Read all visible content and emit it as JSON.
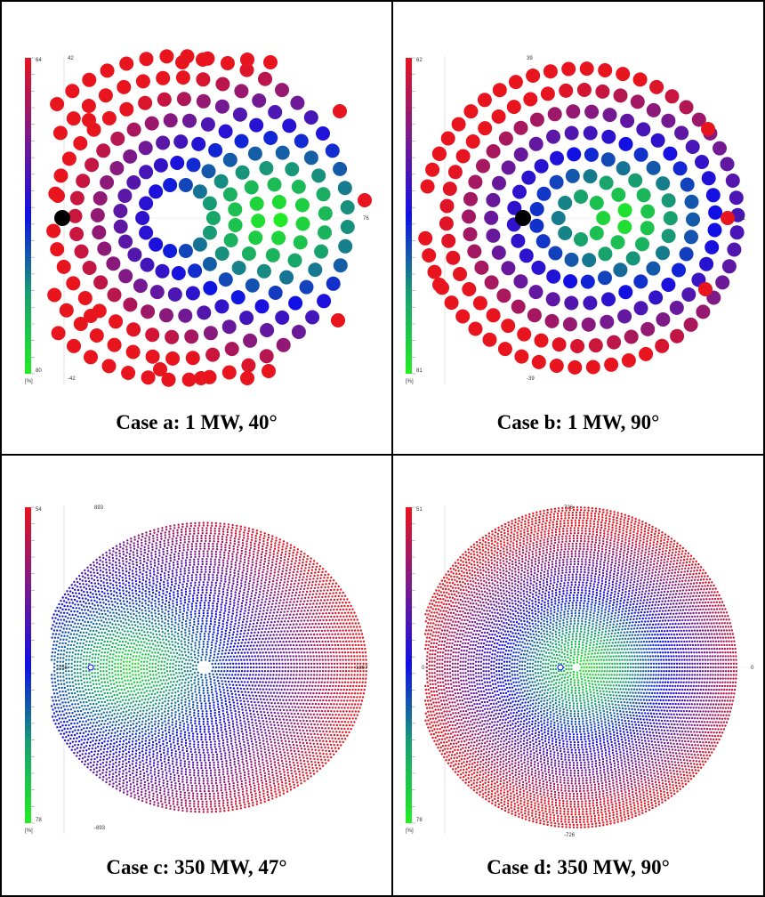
{
  "figure": {
    "cases": [
      {
        "caption": "Case a: 1 MW, 40°",
        "scale": {
          "top": "64",
          "bottom": "80",
          "unit": "[%]"
        },
        "axis": {
          "top": "42",
          "bottom": "-42",
          "right": "76"
        }
      },
      {
        "caption": "Case b: 1 MW, 90°",
        "scale": {
          "top": "62",
          "bottom": "81",
          "unit": "[%]"
        },
        "axis": {
          "top": "39",
          "bottom": "-39",
          "right": "51"
        }
      },
      {
        "caption": "Case c: 350 MW, 47°",
        "scale": {
          "top": "54",
          "bottom": "78",
          "unit": "[%]"
        },
        "axis": {
          "top": "893",
          "bottom": "-893",
          "right": "1867",
          "left": "-255"
        }
      },
      {
        "caption": "Case d: 350 MW, 90°",
        "scale": {
          "top": "51",
          "bottom": "78",
          "unit": "[%]"
        },
        "axis": {
          "top": "726",
          "bottom": "-726",
          "right": "0",
          "left": "0"
        }
      }
    ],
    "colors": {
      "red": "#e8141e",
      "purple": "#7a1a8c",
      "blue": "#1010e6",
      "teal": "#18a070",
      "green": "#22ee22",
      "receiver": "#000000"
    }
  }
}
